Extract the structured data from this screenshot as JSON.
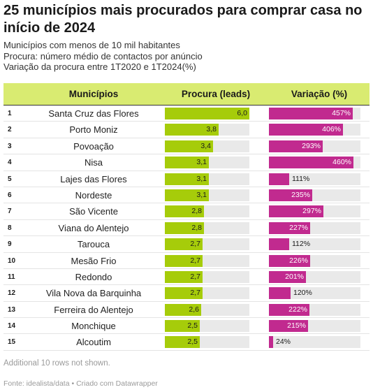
{
  "title": "25 municípios mais procurados para comprar casa no início de 2024",
  "subtitle_lines": [
    "Municípios com menos de 10 mil habitantes",
    "Procura: número médio de contactos por anúncio",
    "Variação da procura entre 1T2020 e 1T2024(%)"
  ],
  "columns": {
    "municipio": "Municípios",
    "procura": "Procura (leads)",
    "variacao": "Variação (%)"
  },
  "colors": {
    "header_bg": "#d9eb71",
    "procura_bar": "#a6cc0a",
    "variacao_bar": "#c12a8f",
    "track": "#e9e9e9"
  },
  "chart_data": {
    "type": "table",
    "procura_max": 6.0,
    "variacao_max": 500,
    "rows": [
      {
        "rank": "1",
        "municipio": "Santa Cruz das Flores",
        "procura": 6.0,
        "procura_label": "6,0",
        "variacao": 457,
        "variacao_label": "457%"
      },
      {
        "rank": "2",
        "municipio": "Porto Moniz",
        "procura": 3.8,
        "procura_label": "3,8",
        "variacao": 406,
        "variacao_label": "406%"
      },
      {
        "rank": "3",
        "municipio": "Povoação",
        "procura": 3.4,
        "procura_label": "3,4",
        "variacao": 293,
        "variacao_label": "293%"
      },
      {
        "rank": "4",
        "municipio": "Nisa",
        "procura": 3.1,
        "procura_label": "3,1",
        "variacao": 460,
        "variacao_label": "460%"
      },
      {
        "rank": "5",
        "municipio": "Lajes das Flores",
        "procura": 3.1,
        "procura_label": "3,1",
        "variacao": 111,
        "variacao_label": "111%"
      },
      {
        "rank": "6",
        "municipio": "Nordeste",
        "procura": 3.1,
        "procura_label": "3,1",
        "variacao": 235,
        "variacao_label": "235%"
      },
      {
        "rank": "7",
        "municipio": "São Vicente",
        "procura": 2.8,
        "procura_label": "2,8",
        "variacao": 297,
        "variacao_label": "297%"
      },
      {
        "rank": "8",
        "municipio": "Viana do Alentejo",
        "procura": 2.8,
        "procura_label": "2,8",
        "variacao": 227,
        "variacao_label": "227%"
      },
      {
        "rank": "9",
        "municipio": "Tarouca",
        "procura": 2.7,
        "procura_label": "2,7",
        "variacao": 112,
        "variacao_label": "112%"
      },
      {
        "rank": "10",
        "municipio": "Mesão Frio",
        "procura": 2.7,
        "procura_label": "2,7",
        "variacao": 226,
        "variacao_label": "226%"
      },
      {
        "rank": "11",
        "municipio": "Redondo",
        "procura": 2.7,
        "procura_label": "2,7",
        "variacao": 201,
        "variacao_label": "201%"
      },
      {
        "rank": "12",
        "municipio": "Vila Nova da Barquinha",
        "procura": 2.7,
        "procura_label": "2,7",
        "variacao": 120,
        "variacao_label": "120%"
      },
      {
        "rank": "13",
        "municipio": "Ferreira do Alentejo",
        "procura": 2.6,
        "procura_label": "2,6",
        "variacao": 222,
        "variacao_label": "222%"
      },
      {
        "rank": "14",
        "municipio": "Monchique",
        "procura": 2.5,
        "procura_label": "2,5",
        "variacao": 215,
        "variacao_label": "215%"
      },
      {
        "rank": "15",
        "municipio": "Alcoutim",
        "procura": 2.5,
        "procura_label": "2,5",
        "variacao": 24,
        "variacao_label": "24%"
      }
    ]
  },
  "note": "Additional 10 rows not shown.",
  "source": "Fonte: idealista/data • Criado com Datawrapper"
}
